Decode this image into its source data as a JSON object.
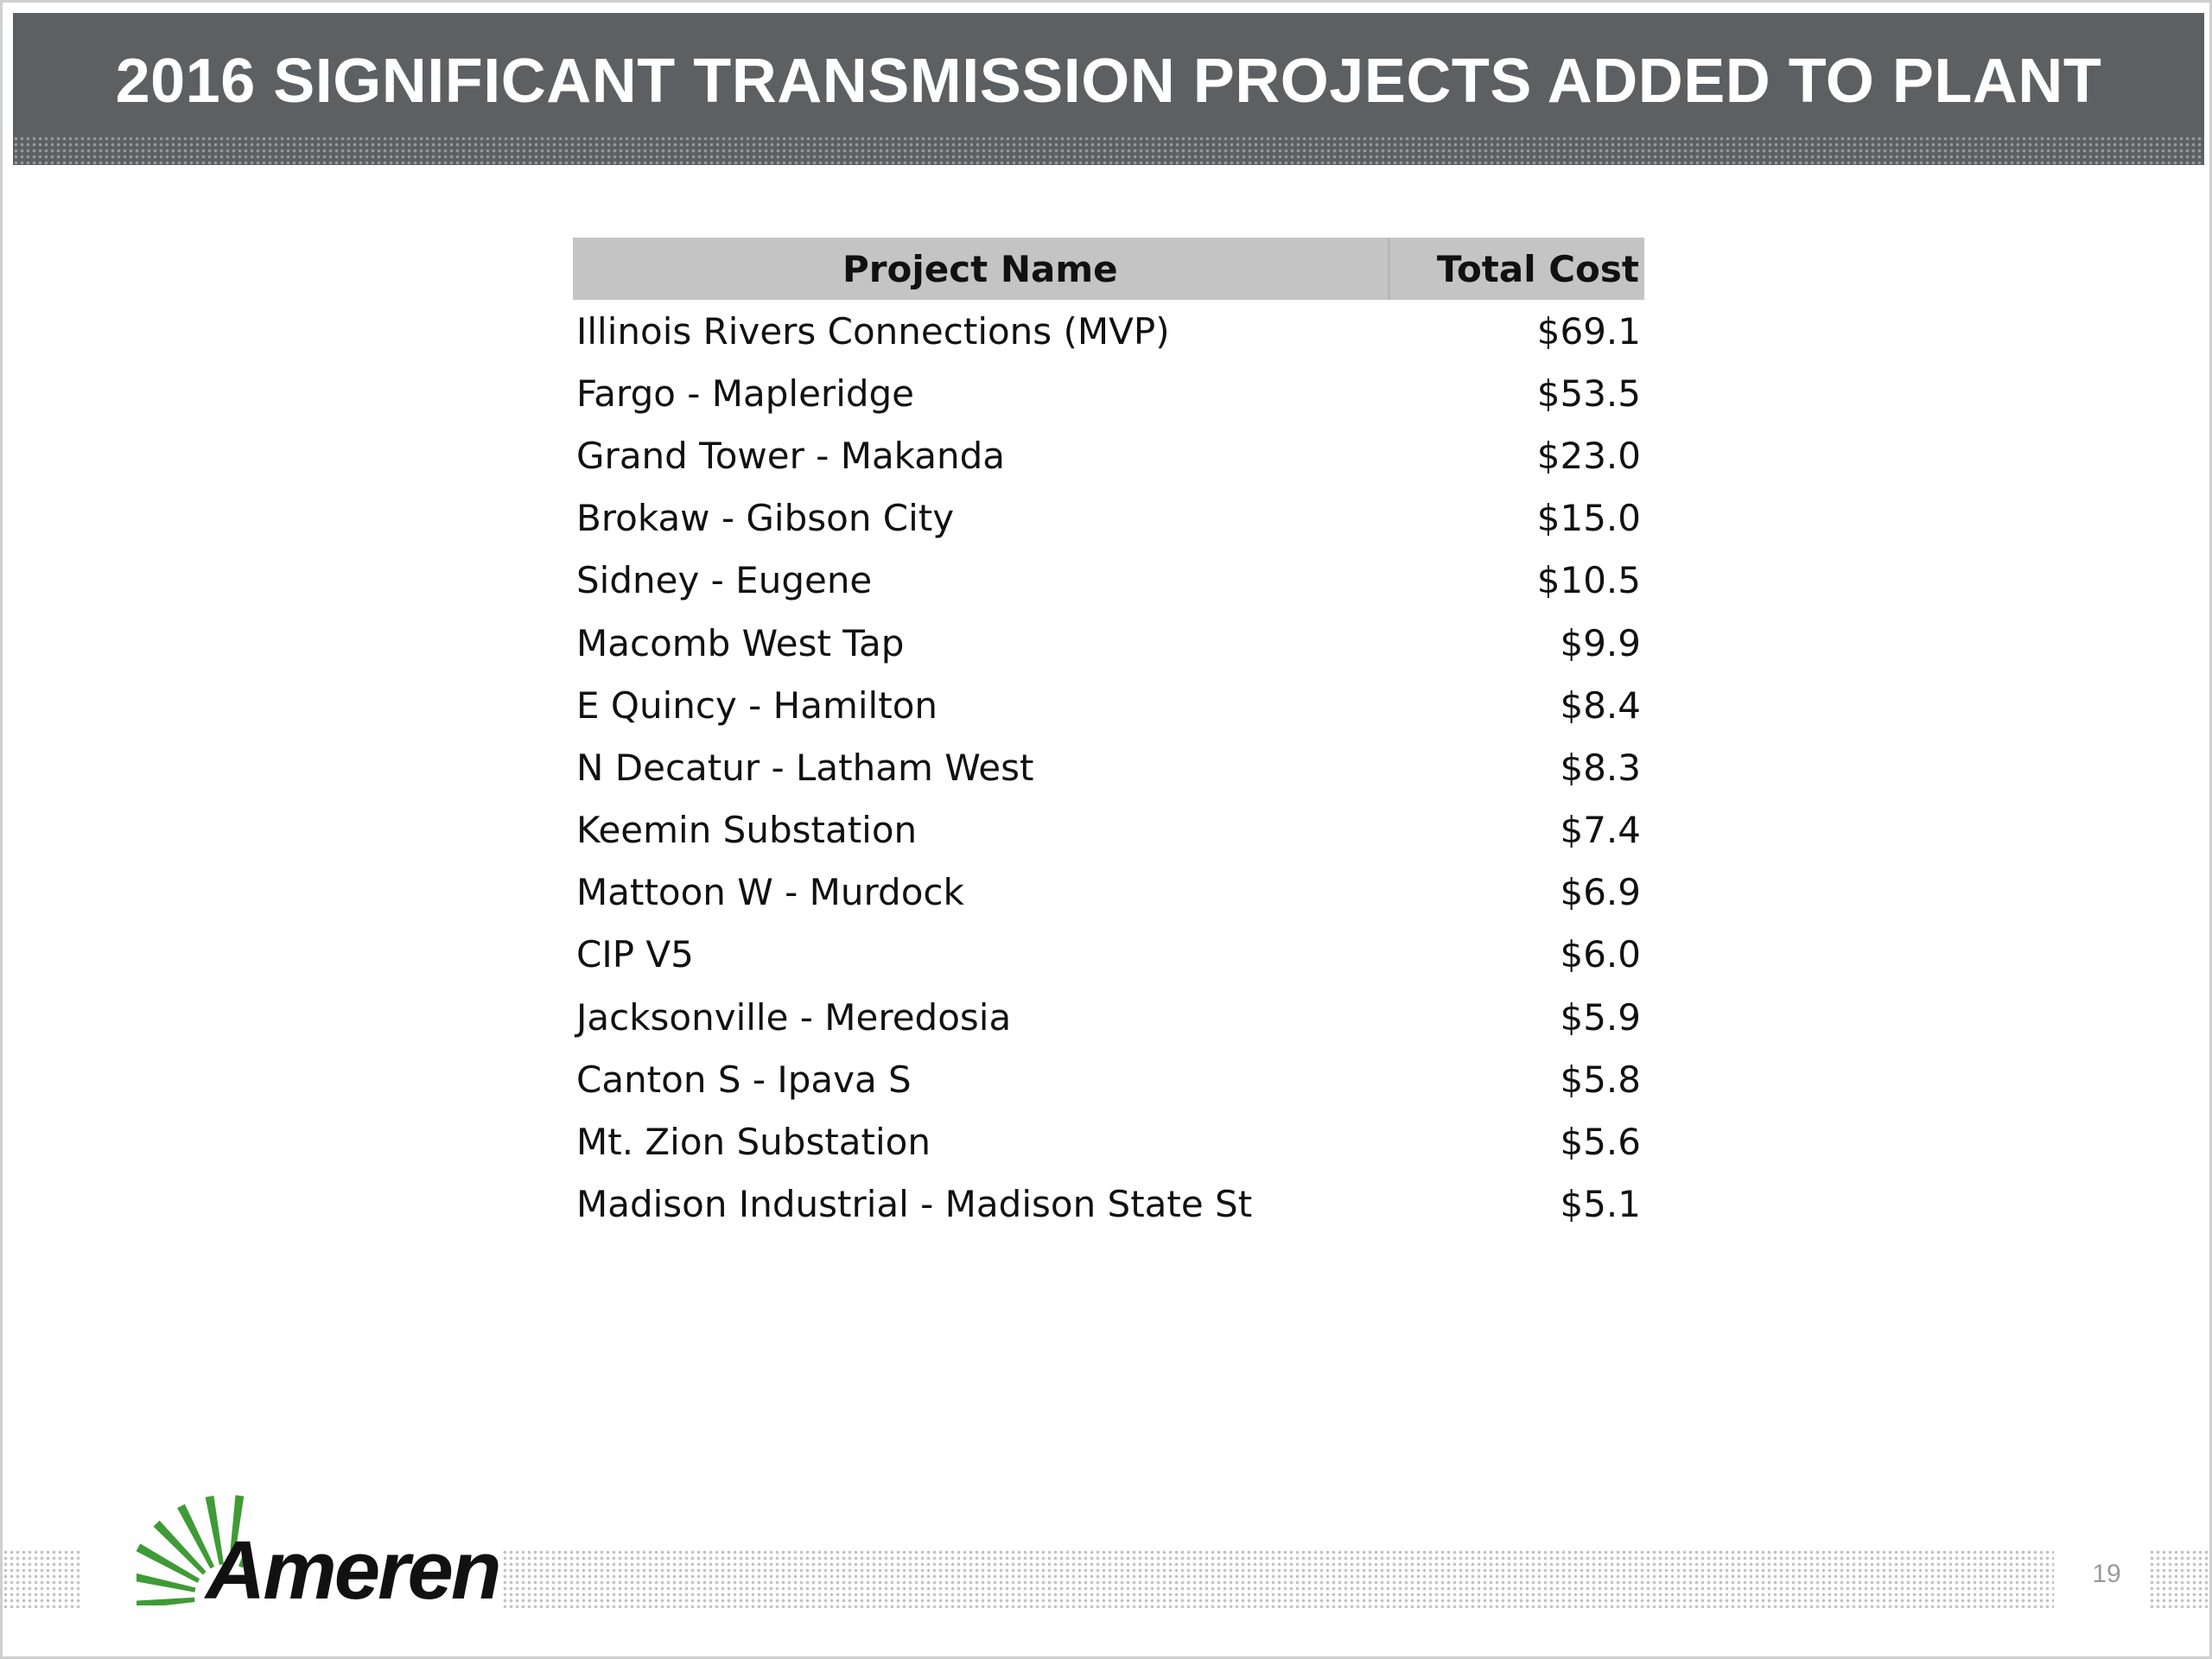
{
  "title": "2016 SIGNIFICANT TRANSMISSION PROJECTS ADDED TO PLANT",
  "table": {
    "headers": {
      "name": "Project Name",
      "cost": "Total Cost"
    },
    "rows": [
      {
        "name": "Illinois Rivers Connections (MVP)",
        "cost": "$69.1"
      },
      {
        "name": "Fargo - Mapleridge",
        "cost": "$53.5"
      },
      {
        "name": "Grand Tower - Makanda",
        "cost": "$23.0"
      },
      {
        "name": "Brokaw - Gibson City",
        "cost": "$15.0"
      },
      {
        "name": "Sidney - Eugene",
        "cost": "$10.5"
      },
      {
        "name": "Macomb West Tap",
        "cost": "$9.9"
      },
      {
        "name": "E Quincy - Hamilton",
        "cost": "$8.4"
      },
      {
        "name": "N Decatur - Latham West",
        "cost": "$8.3"
      },
      {
        "name": "Keemin Substation",
        "cost": "$7.4"
      },
      {
        "name": "Mattoon W - Murdock",
        "cost": "$6.9"
      },
      {
        "name": "CIP V5",
        "cost": "$6.0"
      },
      {
        "name": "Jacksonville - Meredosia",
        "cost": "$5.9"
      },
      {
        "name": "Canton S - Ipava S",
        "cost": "$5.8"
      },
      {
        "name": "Mt. Zion Substation",
        "cost": "$5.6"
      },
      {
        "name": "Madison Industrial - Madison State St",
        "cost": "$5.1"
      }
    ]
  },
  "footer": {
    "logo_text": "Ameren",
    "logo_icon": "ameren-sunburst-icon",
    "page_number": "19"
  },
  "colors": {
    "title_bar": "#5d6062",
    "header_row": "#c4c4c4",
    "logo_green": "#3f9b35",
    "logo_red": "#e0262b"
  }
}
